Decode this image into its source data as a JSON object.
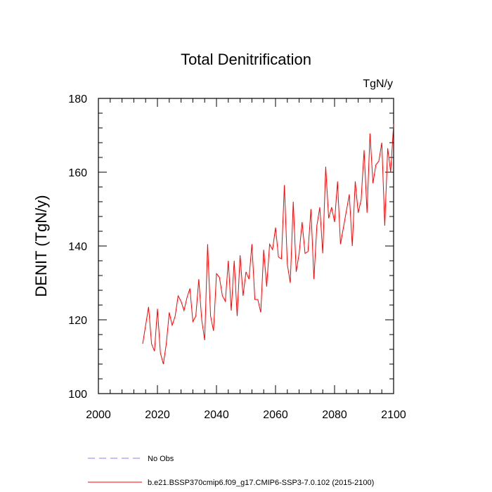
{
  "chart_data": {
    "type": "line",
    "title": "Total Denitrification",
    "units_label": "TgN/y",
    "xlabel": "",
    "ylabel": "DENIT  (TgN/y)",
    "xlim": [
      2000,
      2100
    ],
    "ylim": [
      100,
      180
    ],
    "x_ticks": [
      2000,
      2020,
      2040,
      2060,
      2080,
      2100
    ],
    "y_ticks": [
      100,
      120,
      140,
      160,
      180
    ],
    "grid": false,
    "legend_position": "bottom",
    "series": [
      {
        "name": "b.e21.BSSP370cmip6.f09_g17.CMIP6-SSP3-7.0.102 (2015-2100)",
        "color": "#ff0000",
        "style": "solid",
        "x": [
          2015,
          2016,
          2017,
          2018,
          2019,
          2020,
          2021,
          2022,
          2023,
          2024,
          2025,
          2026,
          2027,
          2028,
          2029,
          2030,
          2031,
          2032,
          2033,
          2034,
          2035,
          2036,
          2037,
          2038,
          2039,
          2040,
          2041,
          2042,
          2043,
          2044,
          2045,
          2046,
          2047,
          2048,
          2049,
          2050,
          2051,
          2052,
          2053,
          2054,
          2055,
          2056,
          2057,
          2058,
          2059,
          2060,
          2061,
          2062,
          2063,
          2064,
          2065,
          2066,
          2067,
          2068,
          2069,
          2070,
          2071,
          2072,
          2073,
          2074,
          2075,
          2076,
          2077,
          2078,
          2079,
          2080,
          2081,
          2082,
          2083,
          2084,
          2085,
          2086,
          2087,
          2088,
          2089,
          2090,
          2091,
          2092,
          2093,
          2094,
          2095,
          2096,
          2097,
          2098,
          2099,
          2100
        ],
        "values": [
          113.5,
          118.5,
          123.5,
          113.5,
          111.5,
          123.0,
          111.0,
          108.0,
          113.5,
          122.0,
          118.5,
          121.0,
          126.5,
          125.0,
          122.5,
          126.0,
          128.5,
          119.5,
          121.0,
          131.0,
          120.0,
          114.5,
          140.5,
          121.0,
          117.0,
          132.5,
          131.5,
          126.5,
          125.0,
          136.0,
          122.5,
          136.0,
          121.0,
          137.5,
          126.5,
          133.0,
          131.0,
          140.5,
          125.5,
          125.5,
          122.0,
          139.0,
          129.0,
          140.5,
          139.0,
          145.0,
          137.0,
          136.5,
          156.5,
          135.0,
          130.0,
          152.0,
          133.0,
          138.0,
          146.5,
          138.0,
          138.5,
          150.0,
          131.0,
          145.5,
          150.5,
          138.0,
          161.5,
          147.5,
          150.5,
          146.5,
          157.5,
          140.5,
          145.0,
          149.5,
          154.0,
          140.0,
          157.5,
          149.0,
          152.5,
          166.0,
          149.0,
          170.5,
          157.0,
          162.0,
          163.0,
          168.0,
          145.5,
          166.5,
          160.0,
          173.0
        ]
      },
      {
        "name": "No Obs",
        "color": "#8080ff",
        "style": "dashed",
        "x": [],
        "values": []
      }
    ]
  }
}
